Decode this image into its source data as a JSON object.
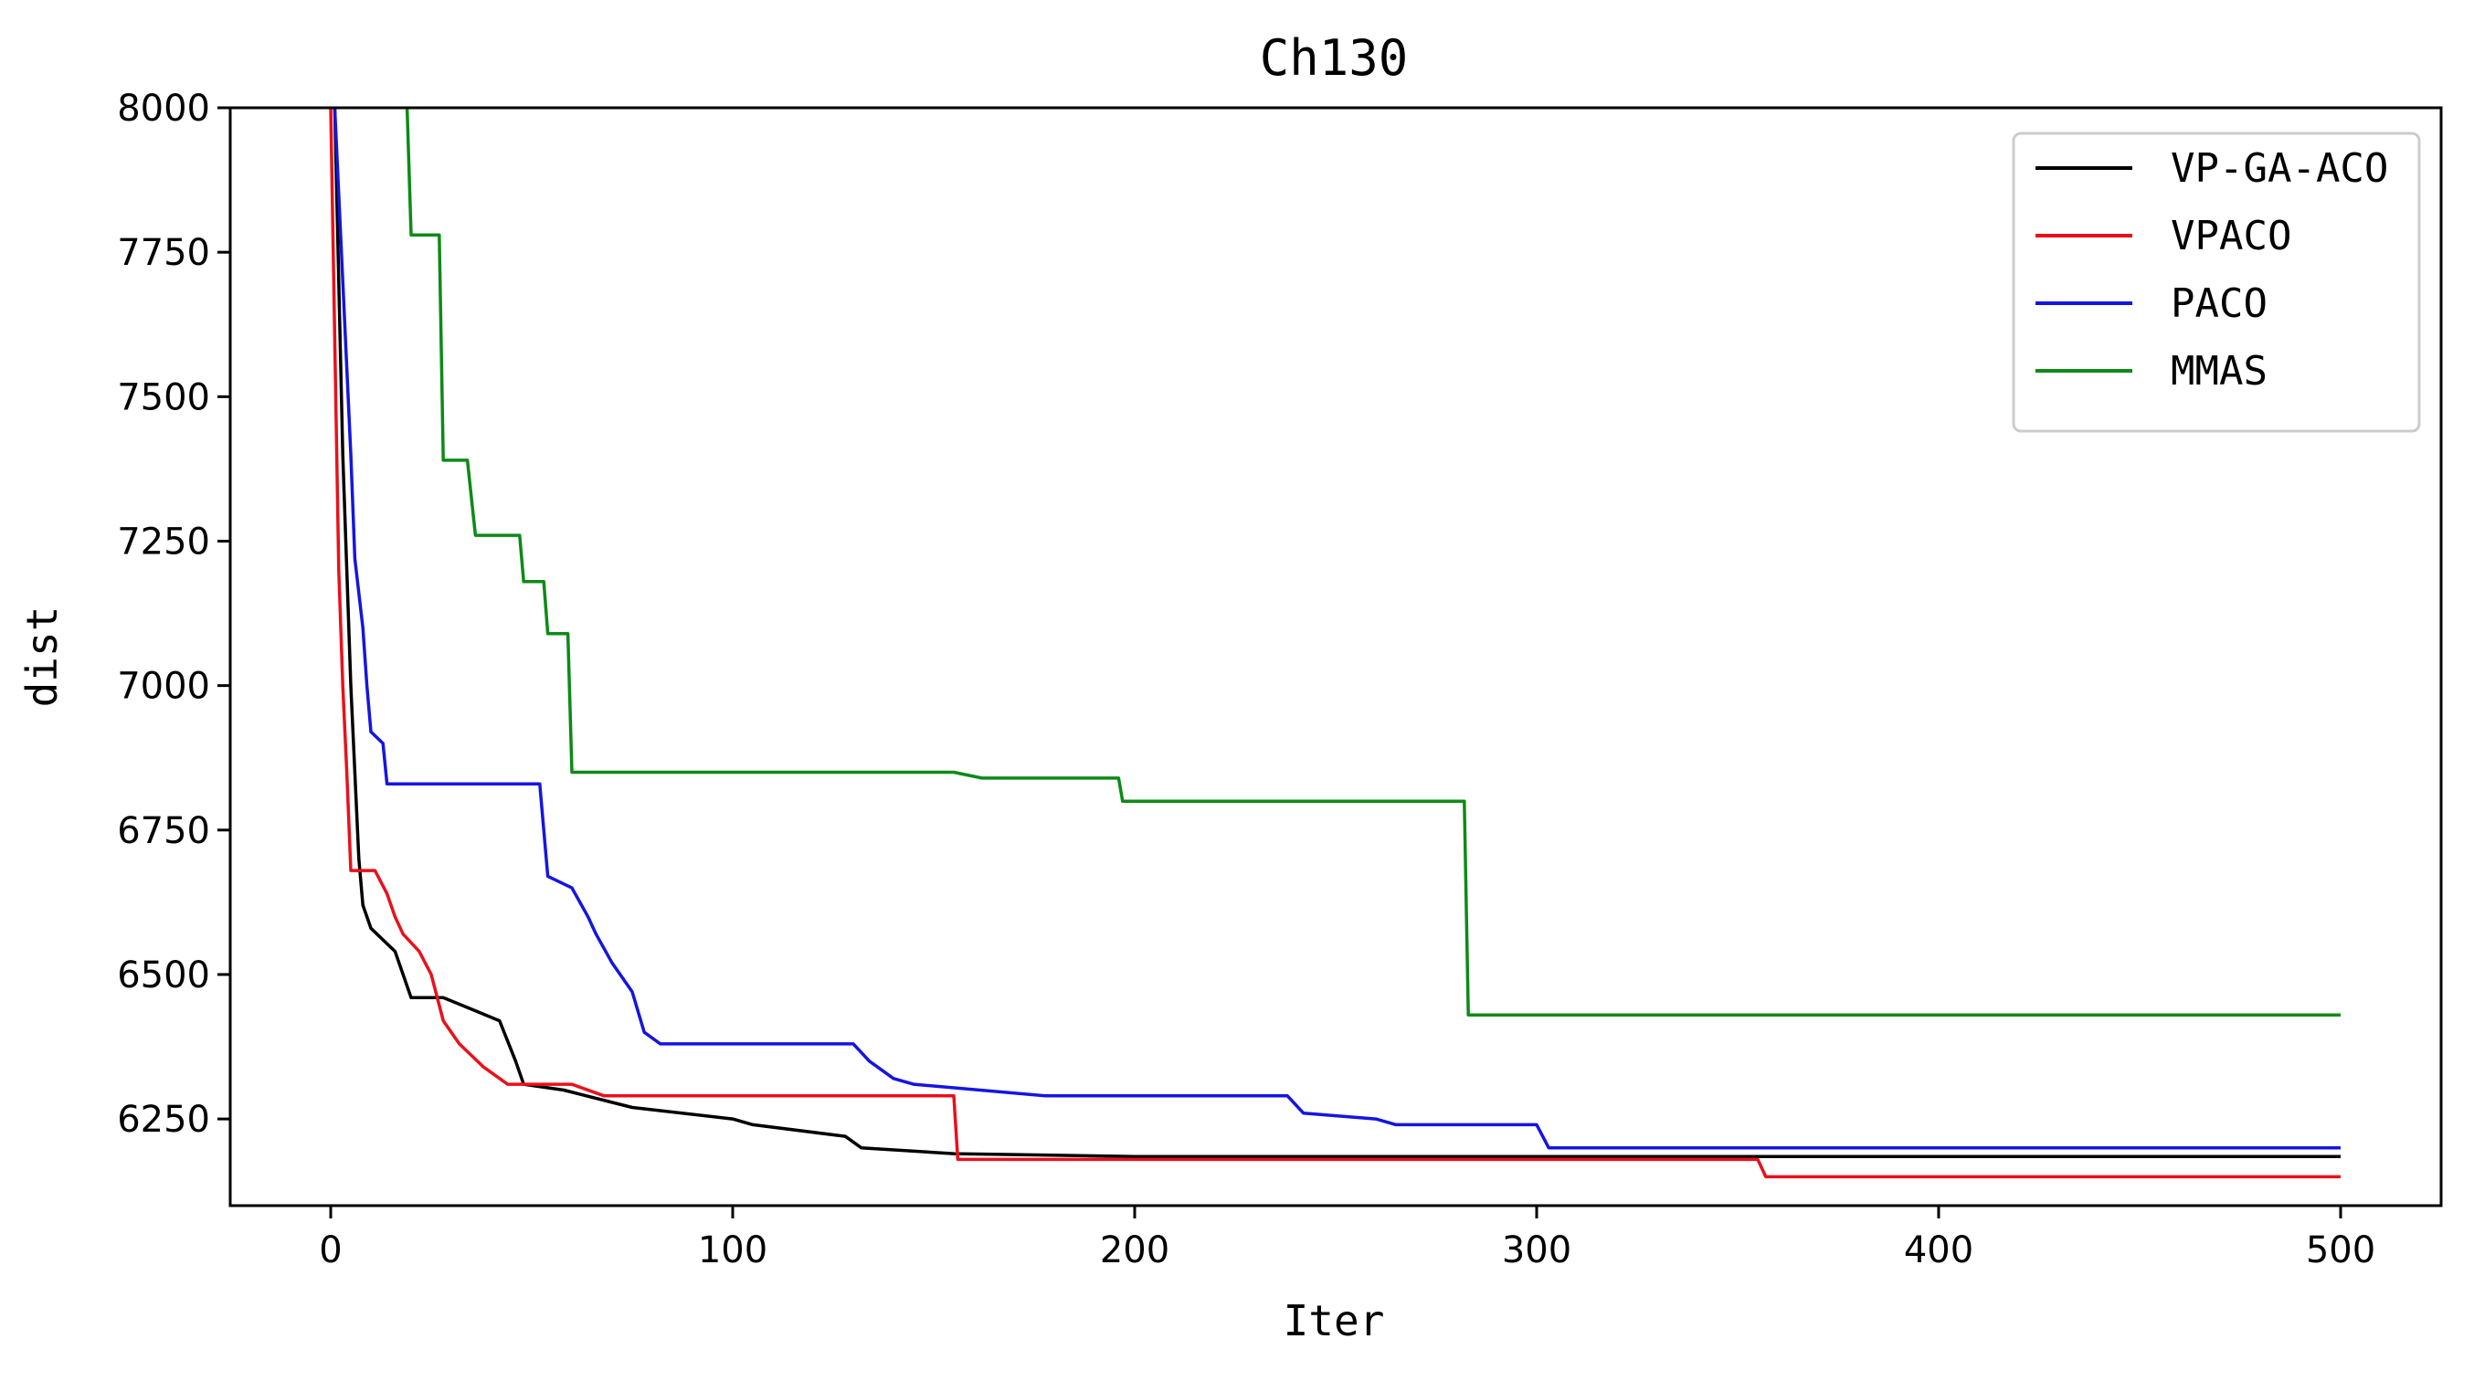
{
  "chart_data": {
    "type": "line",
    "title": "Ch130",
    "xlabel": "Iter",
    "ylabel": "dist",
    "xlim": [
      -25,
      525
    ],
    "ylim": [
      6100,
      8000
    ],
    "xticks": [
      0,
      100,
      200,
      300,
      400,
      500
    ],
    "yticks": [
      6250,
      6500,
      6750,
      7000,
      7250,
      7500,
      7750,
      8000
    ],
    "grid": false,
    "legend_position": "top-right",
    "series": [
      {
        "name": "VP-GA-ACO",
        "color": "#000000",
        "points": [
          [
            1,
            8000
          ],
          [
            2,
            7700
          ],
          [
            3,
            7400
          ],
          [
            4,
            7200
          ],
          [
            5,
            7000
          ],
          [
            6,
            6850
          ],
          [
            7,
            6700
          ],
          [
            8,
            6620
          ],
          [
            10,
            6580
          ],
          [
            16,
            6540
          ],
          [
            20,
            6460
          ],
          [
            28,
            6460
          ],
          [
            35,
            6440
          ],
          [
            42,
            6420
          ],
          [
            46,
            6350
          ],
          [
            48,
            6310
          ],
          [
            58,
            6300
          ],
          [
            75,
            6270
          ],
          [
            100,
            6250
          ],
          [
            105,
            6240
          ],
          [
            128,
            6220
          ],
          [
            132,
            6200
          ],
          [
            155,
            6190
          ],
          [
            200,
            6185
          ],
          [
            300,
            6185
          ],
          [
            400,
            6185
          ],
          [
            500,
            6185
          ]
        ]
      },
      {
        "name": "VPACO",
        "color": "#e8111b",
        "points": [
          [
            0,
            8000
          ],
          [
            1,
            7600
          ],
          [
            2,
            7200
          ],
          [
            3,
            7000
          ],
          [
            4,
            6850
          ],
          [
            5,
            6680
          ],
          [
            11,
            6680
          ],
          [
            14,
            6640
          ],
          [
            16,
            6600
          ],
          [
            18,
            6570
          ],
          [
            22,
            6540
          ],
          [
            25,
            6500
          ],
          [
            28,
            6420
          ],
          [
            32,
            6380
          ],
          [
            38,
            6340
          ],
          [
            44,
            6310
          ],
          [
            60,
            6310
          ],
          [
            68,
            6290
          ],
          [
            155,
            6290
          ],
          [
            156,
            6180
          ],
          [
            300,
            6180
          ],
          [
            355,
            6180
          ],
          [
            357,
            6150
          ],
          [
            500,
            6150
          ]
        ]
      },
      {
        "name": "PACO",
        "color": "#1515e0",
        "points": [
          [
            1,
            8000
          ],
          [
            3,
            7700
          ],
          [
            5,
            7400
          ],
          [
            6,
            7220
          ],
          [
            8,
            7100
          ],
          [
            9,
            7000
          ],
          [
            10,
            6920
          ],
          [
            13,
            6900
          ],
          [
            14,
            6830
          ],
          [
            52,
            6830
          ],
          [
            54,
            6670
          ],
          [
            60,
            6650
          ],
          [
            64,
            6600
          ],
          [
            66,
            6570
          ],
          [
            70,
            6520
          ],
          [
            75,
            6470
          ],
          [
            78,
            6400
          ],
          [
            82,
            6380
          ],
          [
            130,
            6380
          ],
          [
            134,
            6350
          ],
          [
            140,
            6320
          ],
          [
            145,
            6310
          ],
          [
            178,
            6290
          ],
          [
            238,
            6290
          ],
          [
            242,
            6260
          ],
          [
            260,
            6250
          ],
          [
            265,
            6240
          ],
          [
            300,
            6240
          ],
          [
            303,
            6200
          ],
          [
            500,
            6200
          ]
        ]
      },
      {
        "name": "MMAS",
        "color": "#0d8a17",
        "points": [
          [
            19,
            8000
          ],
          [
            20,
            7780
          ],
          [
            27,
            7780
          ],
          [
            28,
            7390
          ],
          [
            34,
            7390
          ],
          [
            36,
            7260
          ],
          [
            47,
            7260
          ],
          [
            48,
            7180
          ],
          [
            53,
            7180
          ],
          [
            54,
            7090
          ],
          [
            59,
            7090
          ],
          [
            60,
            6850
          ],
          [
            155,
            6850
          ],
          [
            162,
            6840
          ],
          [
            196,
            6840
          ],
          [
            197,
            6800
          ],
          [
            282,
            6800
          ],
          [
            283,
            6430
          ],
          [
            500,
            6430
          ]
        ]
      }
    ]
  }
}
